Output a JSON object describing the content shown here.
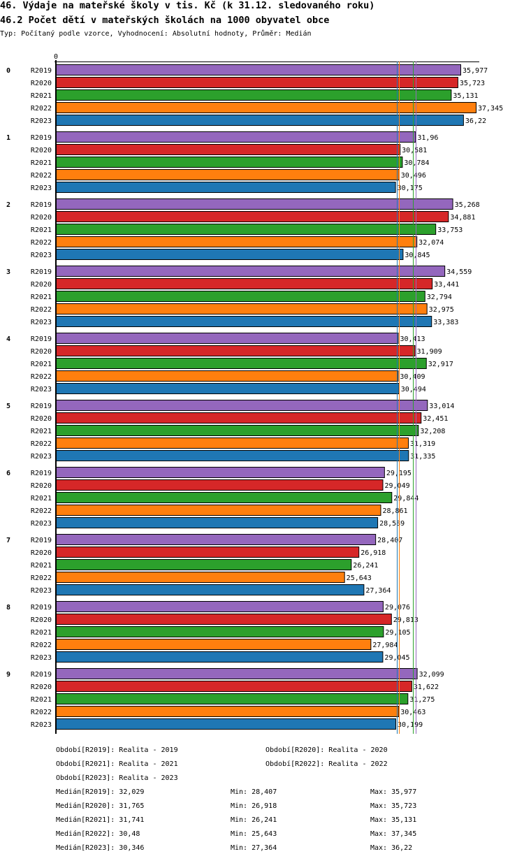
{
  "header": {
    "title": "46. Výdaje na mateřské školy v tis. Kč (k 31.12. sledovaného roku)",
    "subtitle": "46.2 Počet dětí v mateřských školách na 1000 obyvatel obce",
    "info": "Typ: Počítaný podle vzorce, Vyhodnocení: Absolutní hodnoty, Průměr: Medián"
  },
  "chart_data": {
    "type": "bar",
    "orientation": "horizontal",
    "title": "46.2 Počet dětí v mateřských školách na 1000 obyvatel obce",
    "axis_zero_label": "0",
    "xlim": [
      0,
      37.345
    ],
    "categories": [
      "0",
      "1",
      "2",
      "3",
      "4",
      "5",
      "6",
      "7",
      "8",
      "9"
    ],
    "series": [
      {
        "name": "R2019",
        "color": "#9467bd",
        "values": [
          35.977,
          31.96,
          35.268,
          34.559,
          30.413,
          33.014,
          29.195,
          28.407,
          29.076,
          32.099
        ],
        "labels": [
          "35,977",
          "31,96",
          "35,268",
          "34,559",
          "30,413",
          "33,014",
          "29,195",
          "28,407",
          "29,076",
          "32,099"
        ],
        "median": 32.029
      },
      {
        "name": "R2020",
        "color": "#d62728",
        "values": [
          35.723,
          30.581,
          34.881,
          33.441,
          31.909,
          32.451,
          29.049,
          26.918,
          29.813,
          31.622
        ],
        "labels": [
          "35,723",
          "30,581",
          "34,881",
          "33,441",
          "31,909",
          "32,451",
          "29,049",
          "26,918",
          "29,813",
          "31,622"
        ],
        "median": 31.765
      },
      {
        "name": "R2021",
        "color": "#2ca02c",
        "values": [
          35.131,
          30.784,
          33.753,
          32.794,
          32.917,
          32.208,
          29.844,
          26.241,
          29.105,
          31.275
        ],
        "labels": [
          "35,131",
          "30,784",
          "33,753",
          "32,794",
          "32,917",
          "32,208",
          "29,844",
          "26,241",
          "29,105",
          "31,275"
        ],
        "median": 31.741
      },
      {
        "name": "R2022",
        "color": "#ff7f0e",
        "values": [
          37.345,
          30.496,
          32.074,
          32.975,
          30.409,
          31.319,
          28.861,
          25.643,
          27.984,
          30.463
        ],
        "labels": [
          "37,345",
          "30,496",
          "32,074",
          "32,975",
          "30,409",
          "31,319",
          "28,861",
          "25,643",
          "27,984",
          "30,463"
        ],
        "median": 30.48
      },
      {
        "name": "R2023",
        "color": "#1f77b4",
        "values": [
          36.22,
          30.175,
          30.845,
          33.383,
          30.494,
          31.335,
          28.589,
          27.364,
          29.045,
          30.199
        ],
        "labels": [
          "36,22",
          "30,175",
          "30,845",
          "33,383",
          "30,494",
          "31,335",
          "28,589",
          "27,364",
          "29,045",
          "30,199"
        ],
        "median": 30.346
      }
    ],
    "legend_position": "bottom"
  },
  "legend": {
    "periods": [
      "Období[R2019]: Realita - 2019",
      "Období[R2020]: Realita - 2020",
      "Období[R2021]: Realita - 2021",
      "Období[R2022]: Realita - 2022",
      "Období[R2023]: Realita - 2023"
    ],
    "stats": [
      {
        "median": "Medián[R2019]: 32,029",
        "min": "Min: 28,407",
        "max": "Max: 35,977"
      },
      {
        "median": "Medián[R2020]: 31,765",
        "min": "Min: 26,918",
        "max": "Max: 35,723"
      },
      {
        "median": "Medián[R2021]: 31,741",
        "min": "Min: 26,241",
        "max": "Max: 35,131"
      },
      {
        "median": "Medián[R2022]: 30,48",
        "min": "Min: 25,643",
        "max": "Max: 37,345"
      },
      {
        "median": "Medián[R2023]: 30,346",
        "min": "Min: 27,364",
        "max": "Max: 36,22"
      }
    ]
  }
}
